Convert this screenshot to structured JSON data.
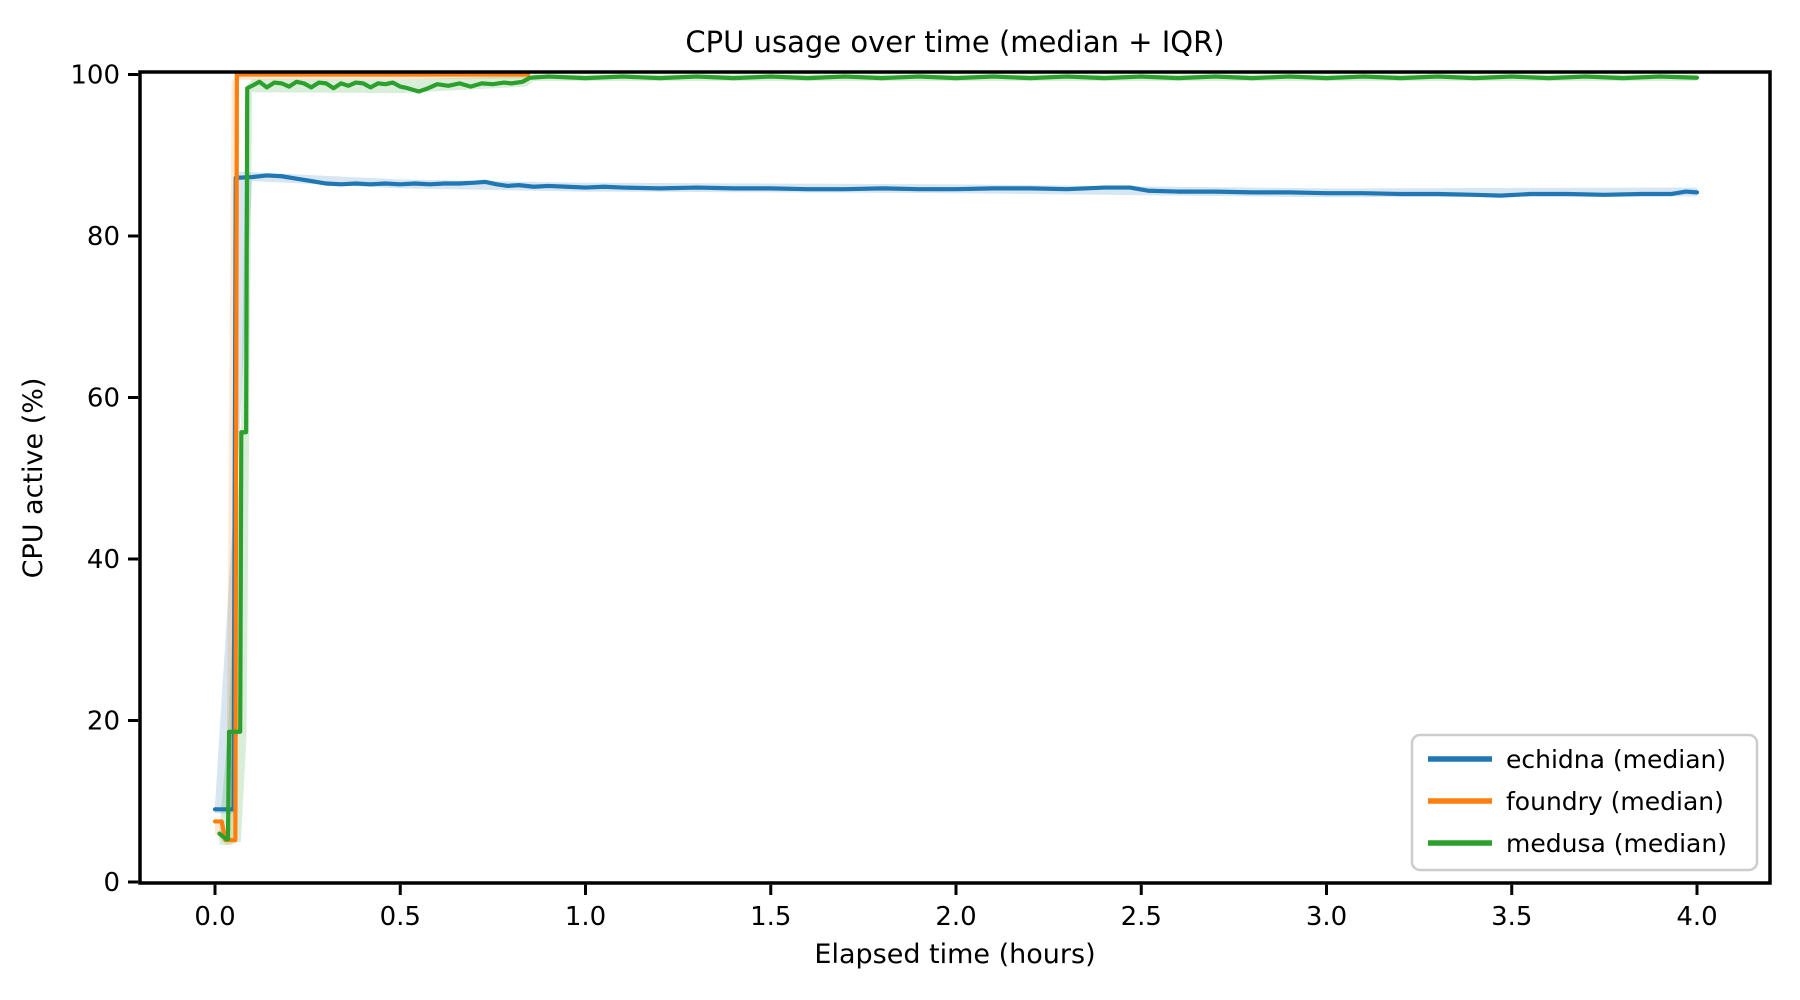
{
  "figure_background": "#ffffff",
  "chart_data": {
    "type": "line",
    "title": "CPU usage over time (median + IQR)",
    "xlabel": "Elapsed time (hours)",
    "ylabel": "CPU active (%)",
    "xlim": [
      -0.2,
      4.2
    ],
    "ylim": [
      0,
      100.4
    ],
    "grid": false,
    "xticks": [
      0.0,
      0.5,
      1.0,
      1.5,
      2.0,
      2.5,
      3.0,
      3.5,
      4.0
    ],
    "xtick_labels": [
      "0.0",
      "0.5",
      "1.0",
      "1.5",
      "2.0",
      "2.5",
      "3.0",
      "3.5",
      "4.0"
    ],
    "yticks": [
      0,
      20,
      40,
      60,
      80,
      100
    ],
    "ytick_labels": [
      "0",
      "20",
      "40",
      "60",
      "80",
      "100"
    ],
    "legend": {
      "position": "lower right",
      "border_color": "#cccccc",
      "background": "#ffffff",
      "entries": [
        "echidna (median)",
        "foundry (median)",
        "medusa (median)"
      ]
    },
    "series": [
      {
        "name": "echidna (median)",
        "color": "#1f77b4",
        "points": [
          [
            0.0,
            9.0
          ],
          [
            0.05,
            9.0
          ],
          [
            0.053,
            46.0
          ],
          [
            0.056,
            87.2
          ],
          [
            0.1,
            87.3
          ],
          [
            0.14,
            87.5
          ],
          [
            0.18,
            87.4
          ],
          [
            0.22,
            87.1
          ],
          [
            0.26,
            86.8
          ],
          [
            0.3,
            86.5
          ],
          [
            0.34,
            86.4
          ],
          [
            0.38,
            86.5
          ],
          [
            0.42,
            86.4
          ],
          [
            0.46,
            86.5
          ],
          [
            0.5,
            86.4
          ],
          [
            0.54,
            86.5
          ],
          [
            0.58,
            86.4
          ],
          [
            0.62,
            86.5
          ],
          [
            0.66,
            86.5
          ],
          [
            0.7,
            86.6
          ],
          [
            0.73,
            86.7
          ],
          [
            0.76,
            86.4
          ],
          [
            0.79,
            86.2
          ],
          [
            0.82,
            86.3
          ],
          [
            0.86,
            86.1
          ],
          [
            0.9,
            86.2
          ],
          [
            0.95,
            86.1
          ],
          [
            1.0,
            86.0
          ],
          [
            1.05,
            86.1
          ],
          [
            1.1,
            86.0
          ],
          [
            1.2,
            85.9
          ],
          [
            1.3,
            86.0
          ],
          [
            1.4,
            85.9
          ],
          [
            1.5,
            85.9
          ],
          [
            1.6,
            85.8
          ],
          [
            1.7,
            85.8
          ],
          [
            1.8,
            85.9
          ],
          [
            1.9,
            85.8
          ],
          [
            2.0,
            85.8
          ],
          [
            2.1,
            85.9
          ],
          [
            2.2,
            85.9
          ],
          [
            2.3,
            85.8
          ],
          [
            2.4,
            86.0
          ],
          [
            2.47,
            86.0
          ],
          [
            2.52,
            85.6
          ],
          [
            2.6,
            85.5
          ],
          [
            2.7,
            85.5
          ],
          [
            2.8,
            85.4
          ],
          [
            2.9,
            85.4
          ],
          [
            3.0,
            85.3
          ],
          [
            3.1,
            85.3
          ],
          [
            3.2,
            85.2
          ],
          [
            3.3,
            85.2
          ],
          [
            3.4,
            85.1
          ],
          [
            3.47,
            85.0
          ],
          [
            3.55,
            85.2
          ],
          [
            3.65,
            85.2
          ],
          [
            3.75,
            85.1
          ],
          [
            3.85,
            85.2
          ],
          [
            3.93,
            85.2
          ],
          [
            3.97,
            85.5
          ],
          [
            4.0,
            85.4
          ]
        ],
        "iqr_band": [
          [
            0.0,
            8.5,
            9.5
          ],
          [
            0.05,
            8.5,
            46.0
          ],
          [
            0.056,
            46.0,
            88.0
          ],
          [
            0.1,
            86.8,
            87.9
          ],
          [
            0.5,
            85.9,
            87.0
          ],
          [
            1.0,
            85.5,
            86.6
          ],
          [
            2.0,
            85.3,
            86.4
          ],
          [
            3.0,
            84.8,
            85.9
          ],
          [
            4.0,
            84.9,
            86.0
          ]
        ]
      },
      {
        "name": "foundry (median)",
        "color": "#ff7f0e",
        "points": [
          [
            0.0,
            7.5
          ],
          [
            0.018,
            7.5
          ],
          [
            0.028,
            5.2
          ],
          [
            0.055,
            5.2
          ],
          [
            0.059,
            100
          ],
          [
            0.3,
            100
          ],
          [
            0.6,
            100
          ],
          [
            0.845,
            100
          ]
        ],
        "iqr_band": [
          [
            0.0,
            6.0,
            8.0
          ],
          [
            0.03,
            4.6,
            6.0
          ],
          [
            0.045,
            4.6,
            99.0
          ],
          [
            0.058,
            5.0,
            100
          ],
          [
            0.065,
            99.3,
            100
          ],
          [
            0.845,
            99.5,
            100
          ]
        ]
      },
      {
        "name": "medusa (median)",
        "color": "#2ca02c",
        "points": [
          [
            0.012,
            6.0
          ],
          [
            0.03,
            5.3
          ],
          [
            0.035,
            5.3
          ],
          [
            0.038,
            18.6
          ],
          [
            0.068,
            18.6
          ],
          [
            0.071,
            55.7
          ],
          [
            0.084,
            55.7
          ],
          [
            0.087,
            98.3
          ],
          [
            0.1,
            98.6
          ],
          [
            0.12,
            99.1
          ],
          [
            0.14,
            98.4
          ],
          [
            0.16,
            99.0
          ],
          [
            0.18,
            98.9
          ],
          [
            0.2,
            98.5
          ],
          [
            0.22,
            99.1
          ],
          [
            0.24,
            98.9
          ],
          [
            0.26,
            98.4
          ],
          [
            0.28,
            99.0
          ],
          [
            0.3,
            98.9
          ],
          [
            0.32,
            98.3
          ],
          [
            0.34,
            98.9
          ],
          [
            0.36,
            98.6
          ],
          [
            0.38,
            99.0
          ],
          [
            0.4,
            98.9
          ],
          [
            0.42,
            98.4
          ],
          [
            0.44,
            98.9
          ],
          [
            0.46,
            98.8
          ],
          [
            0.48,
            99.0
          ],
          [
            0.5,
            98.5
          ],
          [
            0.52,
            98.3
          ],
          [
            0.55,
            97.9
          ],
          [
            0.57,
            98.2
          ],
          [
            0.6,
            98.8
          ],
          [
            0.63,
            98.6
          ],
          [
            0.66,
            98.9
          ],
          [
            0.69,
            98.5
          ],
          [
            0.72,
            98.9
          ],
          [
            0.75,
            98.8
          ],
          [
            0.78,
            99.0
          ],
          [
            0.8,
            98.9
          ],
          [
            0.83,
            99.1
          ],
          [
            0.85,
            99.6
          ],
          [
            0.9,
            99.75
          ],
          [
            1.0,
            99.55
          ],
          [
            1.1,
            99.75
          ],
          [
            1.2,
            99.55
          ],
          [
            1.3,
            99.75
          ],
          [
            1.4,
            99.55
          ],
          [
            1.5,
            99.75
          ],
          [
            1.6,
            99.55
          ],
          [
            1.7,
            99.75
          ],
          [
            1.8,
            99.55
          ],
          [
            1.9,
            99.75
          ],
          [
            2.0,
            99.55
          ],
          [
            2.1,
            99.75
          ],
          [
            2.2,
            99.55
          ],
          [
            2.3,
            99.75
          ],
          [
            2.4,
            99.55
          ],
          [
            2.5,
            99.75
          ],
          [
            2.6,
            99.55
          ],
          [
            2.7,
            99.75
          ],
          [
            2.8,
            99.55
          ],
          [
            2.9,
            99.75
          ],
          [
            3.0,
            99.55
          ],
          [
            3.1,
            99.75
          ],
          [
            3.2,
            99.55
          ],
          [
            3.3,
            99.75
          ],
          [
            3.4,
            99.55
          ],
          [
            3.5,
            99.75
          ],
          [
            3.6,
            99.55
          ],
          [
            3.7,
            99.75
          ],
          [
            3.8,
            99.55
          ],
          [
            3.9,
            99.75
          ],
          [
            4.0,
            99.6
          ]
        ],
        "iqr_band": [
          [
            0.012,
            4.6,
            6.5
          ],
          [
            0.035,
            4.6,
            18.6
          ],
          [
            0.07,
            5.0,
            55.7
          ],
          [
            0.085,
            18.0,
            98.5
          ],
          [
            0.1,
            97.8,
            99.4
          ],
          [
            0.5,
            97.7,
            99.4
          ],
          [
            0.84,
            98.5,
            99.8
          ],
          [
            0.86,
            99.2,
            100
          ],
          [
            4.0,
            99.2,
            100
          ]
        ]
      }
    ]
  }
}
